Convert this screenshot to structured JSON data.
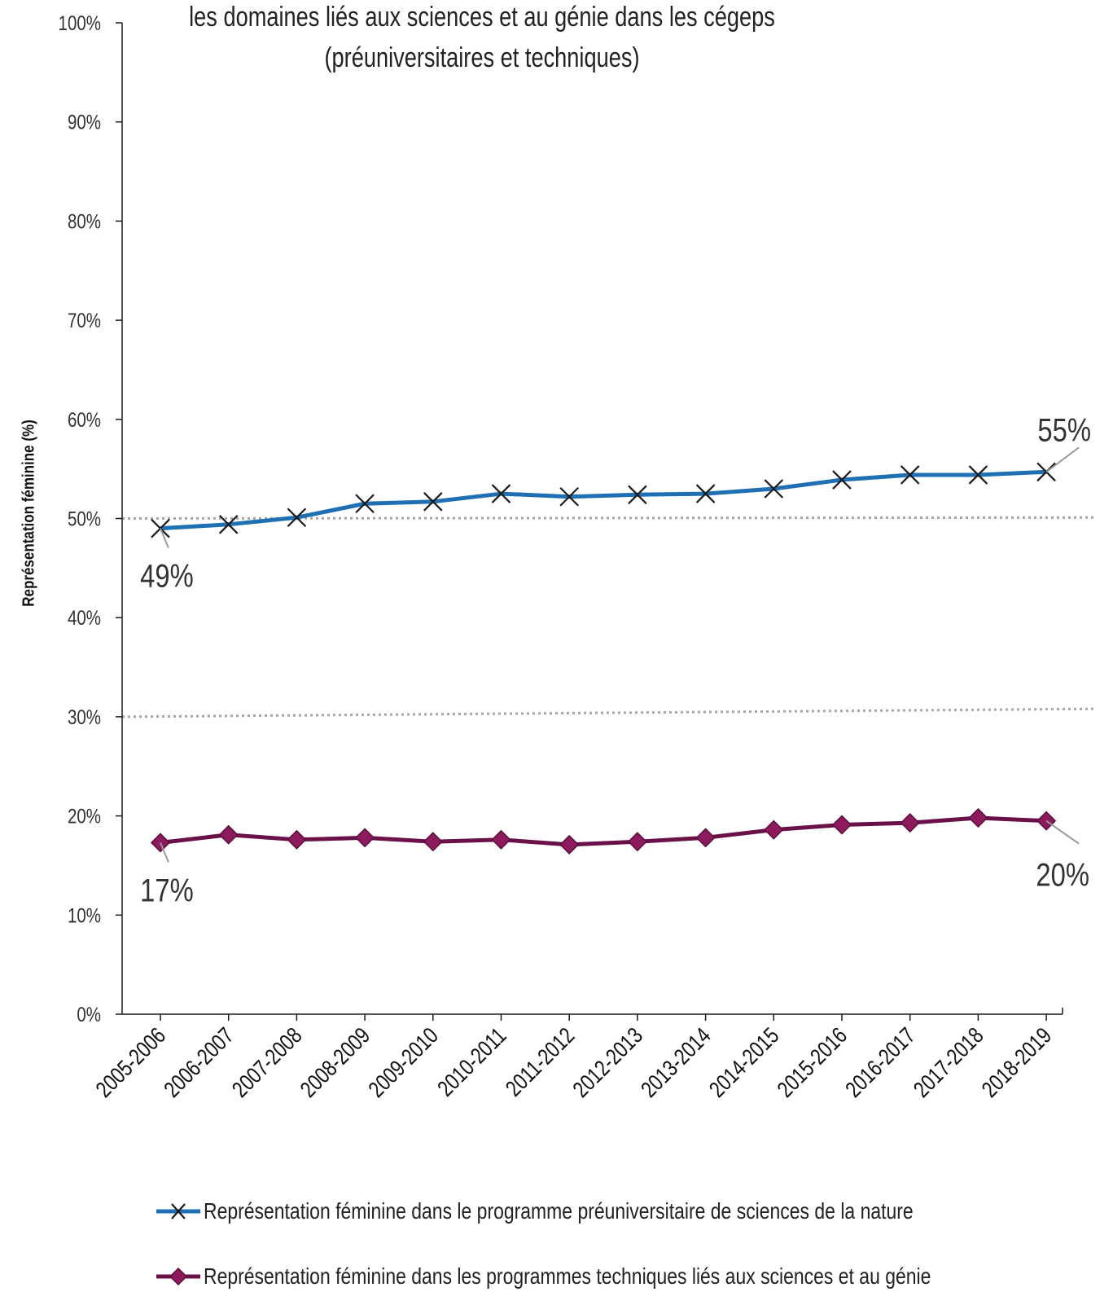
{
  "chart_data": {
    "type": "line",
    "title": [
      "les domaines liés aux sciences et au génie dans les cégeps",
      "(préuniversitaires et techniques)"
    ],
    "ylabel": "Représentation féminine (%)",
    "xlabel": "",
    "ylim": [
      0,
      100
    ],
    "yticks": [
      "0%",
      "10%",
      "20%",
      "30%",
      "40%",
      "50%",
      "60%",
      "70%",
      "80%",
      "90%",
      "100%"
    ],
    "categories": [
      "2005-2006",
      "2006-2007",
      "2007-2008",
      "2008-2009",
      "2009-2010",
      "2010-2011",
      "2011-2012",
      "2012-2013",
      "2013-2014",
      "2014-2015",
      "2015-2016",
      "2016-2017",
      "2017-2018",
      "2018-2019"
    ],
    "series": [
      {
        "name": "Représentation féminine dans le programme préuniversitaire de sciences de la nature",
        "color": "#1f6fb5",
        "marker": "x",
        "values": [
          49.0,
          49.4,
          50.1,
          51.5,
          51.7,
          52.5,
          52.2,
          52.4,
          52.5,
          53.0,
          53.9,
          54.4,
          54.4,
          54.7
        ],
        "labels": [
          {
            "index": 0,
            "text": "49%"
          },
          {
            "index": 13,
            "text": "55%"
          }
        ]
      },
      {
        "name": "Représentation féminine dans les programmes techniques liés aux sciences et au génie",
        "color": "#6b1149",
        "marker": "diamond",
        "values": [
          17.3,
          18.1,
          17.6,
          17.8,
          17.4,
          17.6,
          17.1,
          17.4,
          17.8,
          18.6,
          19.1,
          19.3,
          19.8,
          19.5
        ],
        "labels": [
          {
            "index": 0,
            "text": "17%"
          },
          {
            "index": 13,
            "text": "20%"
          }
        ]
      }
    ],
    "reference_lines": [
      {
        "y_start": 50.0,
        "y_end": 50.1,
        "style": "dotted",
        "color": "#a6a6a6"
      },
      {
        "y_start": 30.0,
        "y_end": 30.8,
        "style": "dotted",
        "color": "#a6a6a6"
      }
    ],
    "grid": false,
    "legend_position": "bottom"
  }
}
